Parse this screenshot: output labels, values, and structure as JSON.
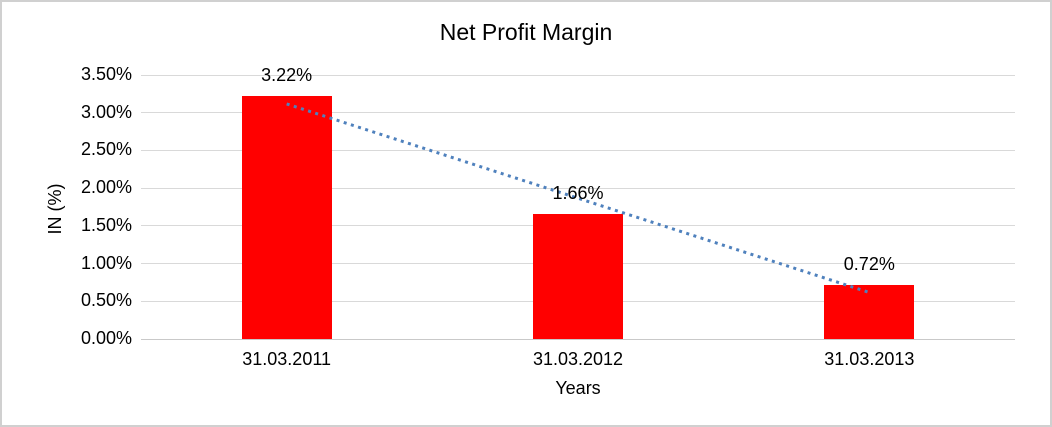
{
  "window": {
    "background": "#ffffff",
    "border_color": "#d0d0d0"
  },
  "chart_data": {
    "type": "bar",
    "title": "Net Profit Margin",
    "xlabel": "Years",
    "ylabel": "IN (%)",
    "categories": [
      "31.03.2011",
      "31.03.2012",
      "31.03.2013"
    ],
    "values": [
      3.22,
      1.66,
      0.72
    ],
    "data_labels": [
      "3.22%",
      "1.66%",
      "0.72%"
    ],
    "y_ticks": [
      {
        "label": "3.50%",
        "value": 3.5
      },
      {
        "label": "3.00%",
        "value": 3.0
      },
      {
        "label": "2.50%",
        "value": 2.5
      },
      {
        "label": "2.00%",
        "value": 2.0
      },
      {
        "label": "1.50%",
        "value": 1.5
      },
      {
        "label": "1.00%",
        "value": 1.0
      },
      {
        "label": "0.50%",
        "value": 0.5
      },
      {
        "label": "0.00%",
        "value": 0.0
      }
    ],
    "ylim": [
      0,
      3.5
    ],
    "grid": true,
    "legend": "none",
    "bar_color": "#ff0000",
    "gridline_color": "#d9d9d9",
    "axisline_color": "#c9c9c9",
    "text_color": "#000000",
    "trendline": {
      "type": "linear",
      "style": "dotted",
      "color": "#4f81bd"
    }
  }
}
